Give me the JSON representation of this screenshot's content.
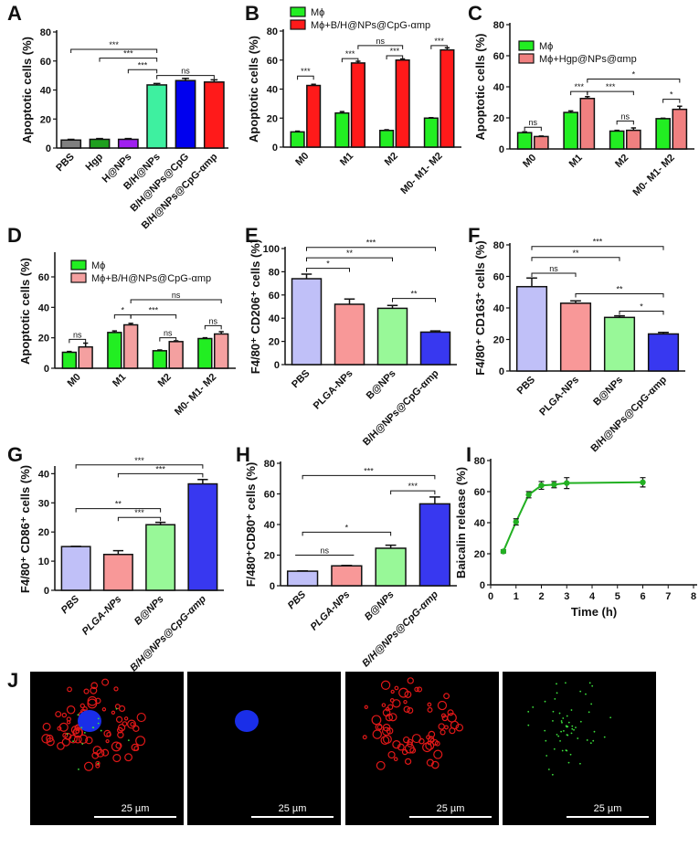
{
  "chart_data": [
    {
      "id": "A",
      "panel": "A",
      "type": "bar",
      "ylabel": "Apoptotic cells (%)",
      "ylim": [
        0,
        80
      ],
      "yticks": [
        0,
        20,
        40,
        60,
        80
      ],
      "categories": [
        "PBS",
        "Hgp",
        "H@NPs",
        "B/H@NPs",
        "B/H@NPs@CpG",
        "B/H@NPs@CpG-αmp"
      ],
      "values": [
        5.5,
        6,
        6,
        43.5,
        46.5,
        45.5
      ],
      "errors": [
        0.5,
        0.5,
        0.5,
        1,
        1.5,
        1.5
      ],
      "colors": [
        "#7f7f7f",
        "#1fa01f",
        "#a020f0",
        "#3ef0a0",
        "#0000ee",
        "#ff1a1a"
      ],
      "brackets": [
        {
          "from": 0,
          "to": 3,
          "y": 68,
          "label": "***"
        },
        {
          "from": 1,
          "to": 3,
          "y": 62,
          "label": "***"
        },
        {
          "from": 2,
          "to": 3,
          "y": 54,
          "label": "***"
        },
        {
          "from": 3,
          "to": 5,
          "y": 50,
          "label": "ns"
        }
      ]
    },
    {
      "id": "B",
      "panel": "B",
      "type": "bar",
      "ylabel": "Apoptotic cells (%)",
      "ylim": [
        0,
        80
      ],
      "yticks": [
        0,
        20,
        40,
        60,
        80
      ],
      "categories": [
        "M0",
        "M1",
        "M2",
        "M0- M1- M2"
      ],
      "series": [
        {
          "name": "Mϕ",
          "color": "#22ee22",
          "values": [
            10.5,
            23.5,
            11.5,
            20
          ],
          "errors": [
            0.5,
            1,
            0.5,
            0.3
          ]
        },
        {
          "name": "Mϕ+B/H@NPs@CpG-αmp",
          "color": "#ff1a1a",
          "values": [
            42.5,
            58,
            60,
            67
          ],
          "errors": [
            0.8,
            1.2,
            0.8,
            1.5
          ]
        }
      ],
      "brackets": [
        {
          "from": 0,
          "to": 1,
          "y": 49,
          "label": "***"
        },
        {
          "from": 2,
          "to": 3,
          "y": 61,
          "label": "***"
        },
        {
          "from": 3,
          "to": 5,
          "y": 70,
          "label": "ns"
        },
        {
          "from": 4,
          "to": 5,
          "y": 63,
          "label": "***"
        },
        {
          "from": 6,
          "to": 7,
          "y": 70,
          "label": "***"
        }
      ]
    },
    {
      "id": "C",
      "panel": "C",
      "type": "bar",
      "ylabel": "Apoptotic cells (%)",
      "ylim": [
        0,
        80
      ],
      "yticks": [
        0,
        20,
        40,
        60,
        80
      ],
      "categories": [
        "M0",
        "M1",
        "M2",
        "M0- M1- M2"
      ],
      "series": [
        {
          "name": "Mϕ",
          "color": "#22ee22",
          "values": [
            10.5,
            23.5,
            11.5,
            19.5
          ],
          "errors": [
            0.5,
            1,
            0.5,
            0.3
          ]
        },
        {
          "name": "Mϕ+Hgp@NPs@αmp",
          "color": "#f08080",
          "values": [
            8,
            32.5,
            12,
            25.5
          ],
          "errors": [
            0.3,
            1.2,
            1.5,
            2
          ]
        }
      ],
      "brackets": [
        {
          "from": 0,
          "to": 1,
          "y": 14,
          "label": "ns"
        },
        {
          "from": 2,
          "to": 3,
          "y": 37,
          "label": "***"
        },
        {
          "from": 3,
          "to": 5,
          "y": 37,
          "label": "***"
        },
        {
          "from": 3,
          "to": 7,
          "y": 45,
          "label": "*"
        },
        {
          "from": 4,
          "to": 5,
          "y": 18,
          "label": "ns"
        },
        {
          "from": 6,
          "to": 7,
          "y": 32,
          "label": "*"
        }
      ]
    },
    {
      "id": "D",
      "panel": "D",
      "type": "bar",
      "ylabel": "Apoptotic cells (%)",
      "ylim": [
        0,
        75
      ],
      "yticks": [
        0,
        20,
        40,
        60
      ],
      "categories": [
        "M0",
        "M1",
        "M2",
        "M0- M1- M2"
      ],
      "series": [
        {
          "name": "Mϕ",
          "color": "#22ee22",
          "values": [
            10.5,
            23.5,
            11.5,
            19.5
          ],
          "errors": [
            0.5,
            1,
            0.5,
            0.5
          ]
        },
        {
          "name": "Mϕ+B/H@NPs@CpG-αmp",
          "color": "#f4a0a0",
          "values": [
            14,
            28.5,
            17.5,
            22.5
          ],
          "errors": [
            2.5,
            1,
            0.5,
            1.5
          ]
        }
      ],
      "brackets": [
        {
          "from": 0,
          "to": 1,
          "y": 19,
          "label": "ns"
        },
        {
          "from": 2,
          "to": 3,
          "y": 35,
          "label": "*"
        },
        {
          "from": 3,
          "to": 5,
          "y": 35,
          "label": "***"
        },
        {
          "from": 3,
          "to": 7,
          "y": 45,
          "label": "ns"
        },
        {
          "from": 4,
          "to": 5,
          "y": 20,
          "label": "ns"
        },
        {
          "from": 6,
          "to": 7,
          "y": 28,
          "label": "ns"
        }
      ]
    },
    {
      "id": "E",
      "panel": "E",
      "type": "bar",
      "ylabel": "F4/80⁺ CD206⁺ cells (%)",
      "ylim": [
        0,
        100
      ],
      "yticks": [
        0,
        20,
        40,
        60,
        80,
        100
      ],
      "categories": [
        "PBS",
        "PLGA-NPs",
        "B@NPs",
        "B/H@NPs@CpG-αmp"
      ],
      "values": [
        74,
        52,
        48.5,
        28
      ],
      "errors": [
        4,
        4.5,
        2.5,
        1
      ],
      "colors": [
        "#c0c0f8",
        "#f89898",
        "#98f898",
        "#3838f0"
      ],
      "brackets": [
        {
          "from": 0,
          "to": 1,
          "y": 83,
          "label": "*"
        },
        {
          "from": 0,
          "to": 2,
          "y": 92,
          "label": "**"
        },
        {
          "from": 0,
          "to": 3,
          "y": 101,
          "label": "***"
        },
        {
          "from": 2,
          "to": 3,
          "y": 57,
          "label": "**"
        }
      ]
    },
    {
      "id": "F",
      "panel": "F",
      "type": "bar",
      "ylabel": "F4/80⁺ CD163⁺ cells (%)",
      "ylim": [
        0,
        80
      ],
      "yticks": [
        0,
        20,
        40,
        60,
        80
      ],
      "categories": [
        "PBS",
        "PLGA-NPs",
        "B@NPs",
        "B/H@NPs@CpG-αmp"
      ],
      "values": [
        53.5,
        43,
        34,
        23.5
      ],
      "errors": [
        5.5,
        1.5,
        1,
        1
      ],
      "colors": [
        "#c0c0f8",
        "#f89898",
        "#98f898",
        "#3838f0"
      ],
      "brackets": [
        {
          "from": 0,
          "to": 1,
          "y": 62,
          "label": "ns"
        },
        {
          "from": 0,
          "to": 2,
          "y": 72,
          "label": "**"
        },
        {
          "from": 0,
          "to": 3,
          "y": 79,
          "label": "***"
        },
        {
          "from": 1,
          "to": 3,
          "y": 49,
          "label": "**"
        },
        {
          "from": 2,
          "to": 3,
          "y": 38,
          "label": "*"
        }
      ]
    },
    {
      "id": "G",
      "panel": "G",
      "type": "bar",
      "italic": true,
      "ylabel": "F4/80⁺ CD86⁺ cells (%)",
      "ylim": [
        0,
        42
      ],
      "yticks": [
        0,
        10,
        20,
        30,
        40
      ],
      "categories": [
        "PBS",
        "PLGA-NPs",
        "B@NPs",
        "B/H@NPs@CpG-αmp"
      ],
      "values": [
        15,
        12.3,
        22.5,
        36.5
      ],
      "errors": [
        0.1,
        1.3,
        0.8,
        1.5
      ],
      "colors": [
        "#c0c0f8",
        "#f89898",
        "#98f898",
        "#3838f0"
      ],
      "brackets": [
        {
          "from": 0,
          "to": 2,
          "y": 28,
          "label": "**"
        },
        {
          "from": 1,
          "to": 2,
          "y": 25,
          "label": "***"
        },
        {
          "from": 1,
          "to": 3,
          "y": 40,
          "label": "***"
        },
        {
          "from": 0,
          "to": 3,
          "y": 43,
          "label": "***"
        }
      ]
    },
    {
      "id": "H",
      "panel": "H",
      "type": "bar",
      "italic": true,
      "ylabel": "F/480⁺CD80⁺ cells (%)",
      "ylim": [
        0,
        80
      ],
      "yticks": [
        0,
        20,
        40,
        60,
        80
      ],
      "categories": [
        "PBS",
        "PLGA-NPs",
        "B@NPs",
        "B/H@NPs@CpG-αmp"
      ],
      "values": [
        9.5,
        13,
        24.5,
        53.5
      ],
      "errors": [
        0.2,
        0.3,
        2,
        4.5
      ],
      "colors": [
        "#c0c0f8",
        "#f89898",
        "#98f898",
        "#3838f0"
      ],
      "brackets": [
        {
          "from": 0,
          "to": 1,
          "y": 20,
          "label": "ns",
          "flat": true
        },
        {
          "from": 0,
          "to": 2,
          "y": 35,
          "label": "*"
        },
        {
          "from": 0,
          "to": 3,
          "y": 72,
          "label": "***"
        },
        {
          "from": 2,
          "to": 3,
          "y": 62,
          "label": "***"
        }
      ]
    },
    {
      "id": "I",
      "panel": "I",
      "type": "line",
      "ylabel": "Baicalin release (%)",
      "xlabel": "Time (h)",
      "xlim": [
        0,
        8
      ],
      "ylim": [
        0,
        80
      ],
      "xticks": [
        0,
        1,
        2,
        3,
        4,
        5,
        6,
        7,
        8
      ],
      "yticks": [
        0,
        20,
        40,
        60,
        80
      ],
      "color": "#22b022",
      "x": [
        0.5,
        1,
        1.5,
        2,
        2.5,
        3,
        6
      ],
      "y": [
        21.5,
        40.5,
        58,
        64,
        64.5,
        65.5,
        66
      ],
      "errors": [
        1,
        2,
        2,
        2.5,
        2,
        3.5,
        3
      ]
    }
  ],
  "images": {
    "panel": "J",
    "scale_labels": [
      "25 µm",
      "25 µm",
      "25 µm",
      "25 µm"
    ],
    "channels": [
      "merge",
      "blue",
      "red",
      "green"
    ]
  }
}
